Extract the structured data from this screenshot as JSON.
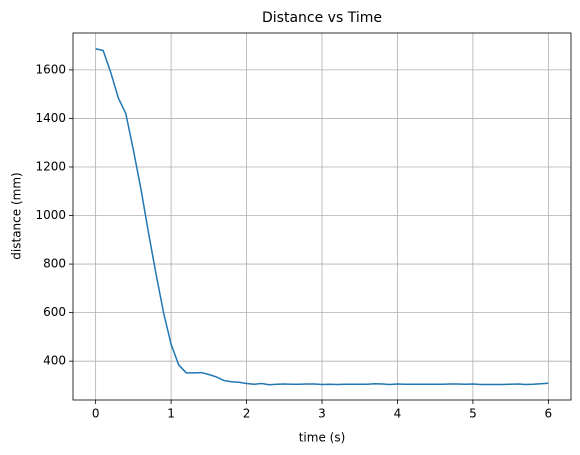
{
  "chart_data": {
    "type": "line",
    "title": "Distance vs Time",
    "xlabel": "time (s)",
    "ylabel": "distance (mm)",
    "x": [
      0,
      0.1,
      0.2,
      0.3,
      0.4,
      0.5,
      0.6,
      0.7,
      0.8,
      0.9,
      1.0,
      1.1,
      1.2,
      1.3,
      1.4,
      1.5,
      1.6,
      1.7,
      1.8,
      1.9,
      2.0,
      2.1,
      2.2,
      2.3,
      2.4,
      2.5,
      2.6,
      2.7,
      2.8,
      2.9,
      3.0,
      3.1,
      3.2,
      3.3,
      3.4,
      3.5,
      3.6,
      3.7,
      3.8,
      3.9,
      4.0,
      4.1,
      4.2,
      4.3,
      4.4,
      4.5,
      4.6,
      4.7,
      4.8,
      4.9,
      5.0,
      5.1,
      5.2,
      5.3,
      5.4,
      5.5,
      5.6,
      5.7,
      5.8,
      5.9,
      6.0
    ],
    "series": [
      {
        "color": "#1f77b4",
        "values": [
          1687,
          1680,
          1590,
          1485,
          1420,
          1270,
          1110,
          930,
          760,
          600,
          470,
          385,
          352,
          352,
          353,
          345,
          335,
          320,
          315,
          313,
          308,
          305,
          308,
          303,
          305,
          306,
          305,
          305,
          306,
          306,
          304,
          305,
          304,
          305,
          305,
          305,
          305,
          307,
          306,
          304,
          306,
          305,
          305,
          305,
          305,
          305,
          305,
          306,
          306,
          305,
          306,
          304,
          304,
          304,
          304,
          305,
          306,
          304,
          305,
          307,
          309
        ]
      }
    ],
    "xlim": [
      -0.3,
      6.3
    ],
    "ylim": [
      240,
      1752
    ],
    "xticks": [
      0,
      1,
      2,
      3,
      4,
      5,
      6
    ],
    "yticks": [
      400,
      600,
      800,
      1000,
      1200,
      1400,
      1600
    ],
    "grid": true
  }
}
